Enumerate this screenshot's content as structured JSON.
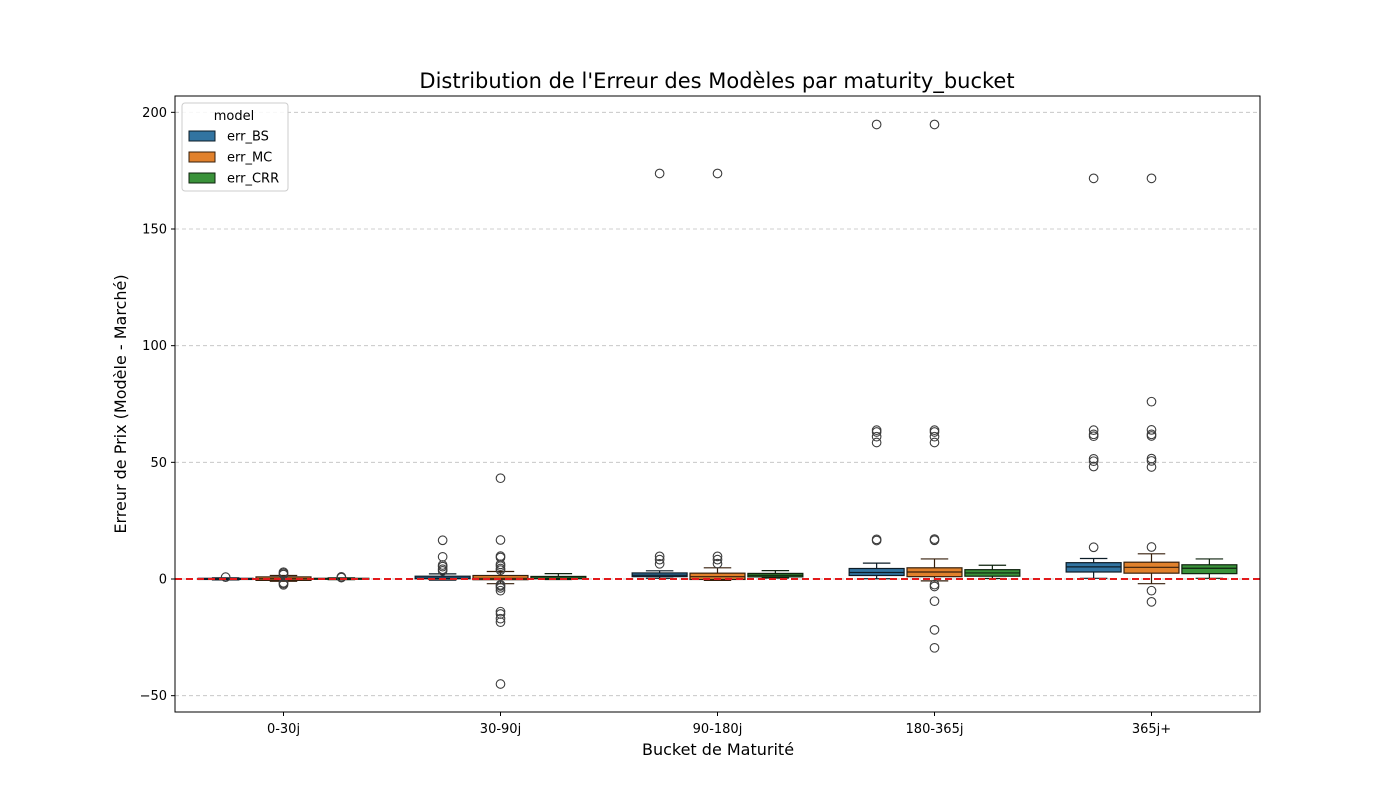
{
  "chart_data": {
    "type": "boxplot",
    "title": "Distribution de l'Erreur des Modèles par maturity_bucket",
    "xlabel": "Bucket de Maturité",
    "ylabel": "Erreur de Prix (Modèle - Marché)",
    "ylim": [
      -57,
      207
    ],
    "yticks": [
      -50,
      0,
      50,
      100,
      150,
      200
    ],
    "grid": "y-dashed",
    "reference_line": {
      "y": 0,
      "color": "#e31a1c",
      "style": "dashed"
    },
    "legend": {
      "title": "model",
      "placement": "top-left"
    },
    "categories": [
      "0-30j",
      "30-90j",
      "90-180j",
      "180-365j",
      "365j+"
    ],
    "series": [
      {
        "name": "err_BS",
        "color": "#3274a1",
        "boxes": [
          {
            "q1": -0.2,
            "median": 0.0,
            "q3": 0.3,
            "whislo": -0.4,
            "whishi": 0.5,
            "fliers": [
              0.8
            ]
          },
          {
            "q1": 0.1,
            "median": 0.4,
            "q3": 1.2,
            "whislo": -0.5,
            "whishi": 2.2,
            "fliers": [
              3.5,
              4.2,
              5.3,
              6.0,
              9.5,
              16.6
            ]
          },
          {
            "q1": 1.0,
            "median": 1.6,
            "q3": 2.6,
            "whislo": 0.3,
            "whishi": 3.5,
            "fliers": [
              6.5,
              8.3,
              9.7,
              173.8
            ]
          },
          {
            "q1": 1.5,
            "median": 2.8,
            "q3": 4.5,
            "whislo": 0.1,
            "whishi": 6.8,
            "fliers": [
              16.5,
              17.0,
              58.5,
              61.0,
              63.0,
              63.8,
              194.8
            ]
          },
          {
            "q1": 3.0,
            "median": 5.2,
            "q3": 7.0,
            "whislo": 0.3,
            "whishi": 8.8,
            "fliers": [
              13.6,
              48.2,
              50.5,
              51.5,
              61.2,
              62.0,
              63.8,
              171.7
            ]
          }
        ]
      },
      {
        "name": "err_MC",
        "color": "#e1812c",
        "boxes": [
          {
            "q1": -0.6,
            "median": 0.1,
            "q3": 0.9,
            "whislo": -1.0,
            "whishi": 1.5,
            "fliers": [
              -2.5,
              -2.0,
              -1.6,
              1.9,
              2.4,
              2.9
            ]
          },
          {
            "q1": -0.3,
            "median": 0.3,
            "q3": 1.5,
            "whislo": -2.0,
            "whishi": 3.2,
            "fliers": [
              -45.0,
              -18.5,
              -17.0,
              -15.0,
              -14.0,
              -5.0,
              -3.8,
              -3.0,
              -2.5,
              3.8,
              4.5,
              5.5,
              6.3,
              9.2,
              9.8,
              16.7,
              43.2
            ]
          },
          {
            "q1": -0.2,
            "median": 1.0,
            "q3": 2.5,
            "whislo": -0.6,
            "whishi": 4.8,
            "fliers": [
              6.6,
              8.3,
              9.7,
              173.8
            ]
          },
          {
            "q1": 1.0,
            "median": 3.0,
            "q3": 4.8,
            "whislo": -0.8,
            "whishi": 8.6,
            "fliers": [
              -29.5,
              -21.8,
              -9.5,
              -3.2,
              -2.4,
              16.6,
              17.1,
              58.5,
              61.0,
              63.0,
              63.8,
              194.8
            ]
          },
          {
            "q1": 2.5,
            "median": 5.0,
            "q3": 7.2,
            "whislo": -2.0,
            "whishi": 10.8,
            "fliers": [
              -9.8,
              -5.0,
              13.7,
              48.0,
              50.6,
              51.6,
              61.3,
              62.0,
              63.9,
              76.0,
              171.7
            ]
          }
        ]
      },
      {
        "name": "err_CRR",
        "color": "#3a923a",
        "boxes": [
          {
            "q1": -0.1,
            "median": 0.1,
            "q3": 0.3,
            "whislo": -0.3,
            "whishi": 0.5,
            "fliers": [
              0.6,
              0.9
            ]
          },
          {
            "q1": 0.1,
            "median": 0.4,
            "q3": 1.1,
            "whislo": -0.2,
            "whishi": 2.3,
            "fliers": []
          },
          {
            "q1": 0.9,
            "median": 1.6,
            "q3": 2.4,
            "whislo": 0.4,
            "whishi": 3.6,
            "fliers": []
          },
          {
            "q1": 1.2,
            "median": 2.6,
            "q3": 4.0,
            "whislo": 0.2,
            "whishi": 5.9,
            "fliers": []
          },
          {
            "q1": 2.3,
            "median": 4.6,
            "q3": 6.1,
            "whislo": 0.3,
            "whishi": 8.6,
            "fliers": []
          }
        ]
      }
    ]
  }
}
